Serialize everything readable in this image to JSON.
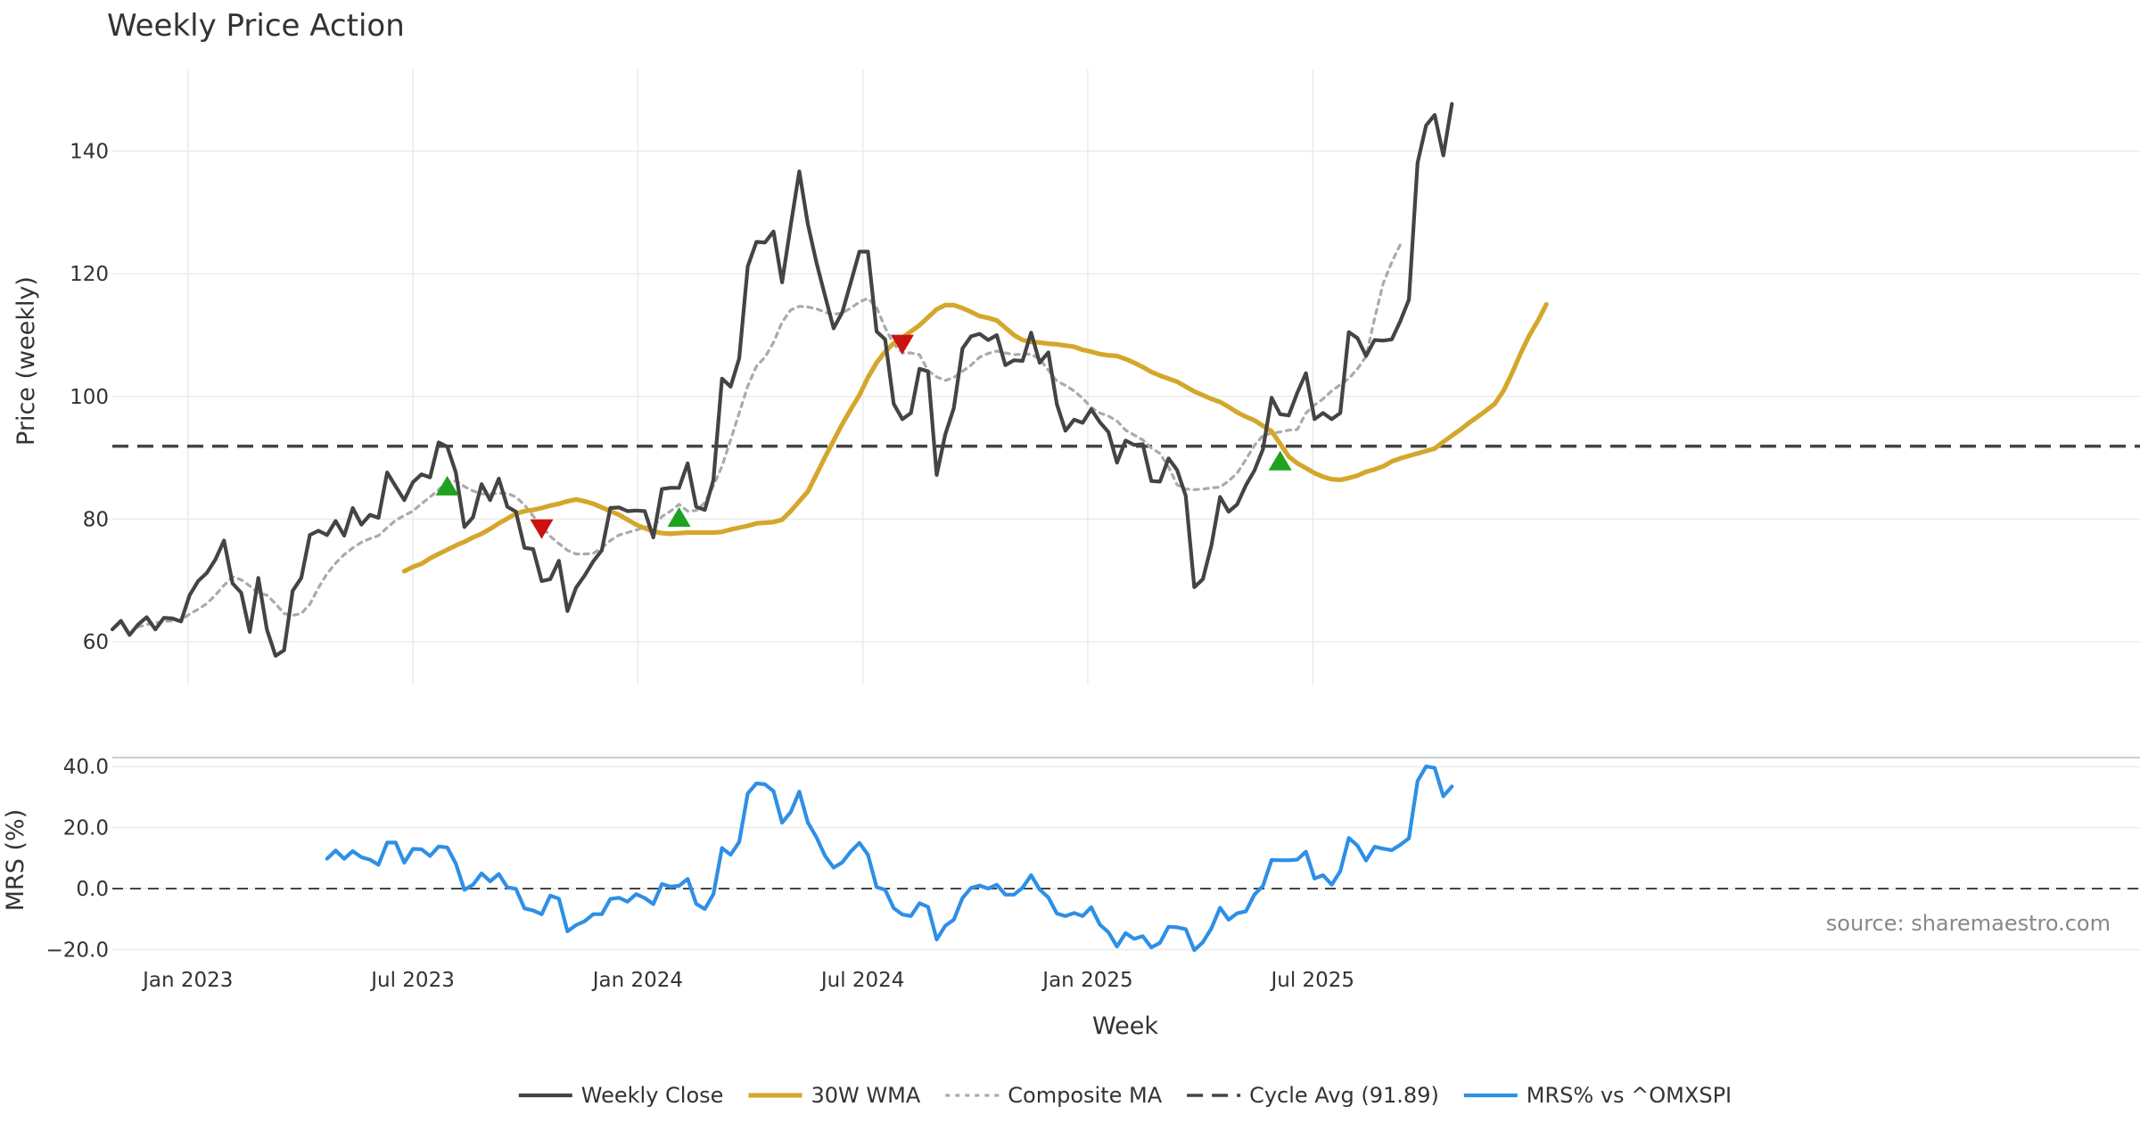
{
  "colors": {
    "close": "#444444",
    "wma": "#D4A72C",
    "composite": "#AAAAAA",
    "cycle": "#444444",
    "mrs": "#2E8FE6",
    "buy": "#1FA21F",
    "sell": "#CC1111"
  },
  "chart_data": {
    "type": "line",
    "title": "Weekly Price Action",
    "xlabel": "Week",
    "x_ticks": [
      "Jan 2023",
      "Jul 2023",
      "Jan 2024",
      "Jul 2024",
      "Jan 2025",
      "Jul 2025"
    ],
    "source": "source: sharemaestro.com",
    "price_panel": {
      "ylabel": "Price (weekly)",
      "yticks": [
        "60",
        "80",
        "100",
        "120",
        "140"
      ],
      "ylim": [
        55,
        156
      ],
      "x_start_week": 0,
      "cycle_avg": 91.89,
      "series": [
        {
          "name": "Weekly Close",
          "x_start": 0,
          "values": [
            62,
            63.4,
            61.1,
            62.8,
            64,
            62,
            63.9,
            63.8,
            63.3,
            67.6,
            69.9,
            71.2,
            73.4,
            76.5,
            69.5,
            68,
            61.6,
            70.4,
            62,
            57.7,
            58.6,
            68.3,
            70.4,
            77.4,
            78.1,
            77.4,
            79.7,
            77.3,
            81.8,
            79.1,
            80.7,
            80.2,
            87.6,
            85.3,
            83.1,
            86,
            87.3,
            86.8,
            92.5,
            91.8,
            87.6,
            78.7,
            80.3,
            85.7,
            83.1,
            86.6,
            82,
            81.2,
            75.3,
            75.1,
            69.9,
            70.2,
            73.2,
            65,
            68.8,
            70.8,
            73.1,
            74.9,
            81.8,
            81.9,
            81.3,
            81.4,
            81.3,
            77,
            84.9,
            85.1,
            85.1,
            89.1,
            82,
            81.5,
            86.4,
            102.9,
            101.6,
            106.2,
            121.2,
            125.2,
            125.1,
            126.9,
            118.6,
            127.9,
            136.7,
            128.1,
            121.8,
            116.4,
            111.1,
            113.7,
            118.6,
            123.6,
            123.6,
            110.6,
            109.3,
            98.8,
            96.3,
            97.3,
            104.5,
            104.1,
            87.2,
            93.8,
            98.1,
            107.8,
            109.8,
            110.2,
            109.2,
            110,
            105.1,
            105.9,
            105.8,
            110.4,
            105.5,
            107.2,
            98.7,
            94.4,
            96.2,
            95.7,
            97.9,
            95.8,
            94.2,
            89.2,
            92.8,
            92.1,
            92.2,
            86.2,
            86.1,
            89.9,
            88,
            83.8,
            68.9,
            70.2,
            75.7,
            83.6,
            81.2,
            82.4,
            85.5,
            87.9,
            91.4,
            99.8,
            97.1,
            96.9,
            100.6,
            103.8,
            96.3,
            97.3,
            96.3,
            97.3,
            110.5,
            109.5,
            106.6,
            109.2,
            109.1,
            109.3,
            112.3,
            115.8,
            138.1,
            144.2,
            145.9,
            139.3,
            147.7
          ]
        },
        {
          "name": "30W WMA",
          "x_start": 34,
          "values": [
            71.5,
            72.2,
            72.7,
            73.6,
            74.3,
            75,
            75.7,
            76.3,
            77,
            77.6,
            78.4,
            79.3,
            80.1,
            80.9,
            81.3,
            81.5,
            81.8,
            82.2,
            82.5,
            82.9,
            83.2,
            82.9,
            82.5,
            81.9,
            81.3,
            80.7,
            79.9,
            79.1,
            78.5,
            78,
            77.7,
            77.6,
            77.7,
            77.8,
            77.8,
            77.8,
            77.8,
            77.9,
            78.3,
            78.6,
            78.9,
            79.3,
            79.4,
            79.5,
            79.9,
            81.3,
            82.9,
            84.5,
            87.3,
            90.1,
            92.8,
            95.5,
            97.9,
            100.2,
            103.1,
            105.5,
            107.3,
            108.7,
            109.6,
            110.6,
            111.6,
            112.9,
            114.2,
            114.9,
            114.9,
            114.4,
            113.8,
            113.1,
            112.8,
            112.4,
            111.2,
            110,
            109.2,
            108.9,
            108.8,
            108.6,
            108.5,
            108.3,
            108.1,
            107.6,
            107.3,
            106.9,
            106.7,
            106.6,
            106.1,
            105.5,
            104.8,
            104,
            103.4,
            102.9,
            102.4,
            101.6,
            100.8,
            100.2,
            99.6,
            99.1,
            98.3,
            97.4,
            96.7,
            96.1,
            95.2,
            94.3,
            92.3,
            90.2,
            89.1,
            88.3,
            87.5,
            86.9,
            86.5,
            86.4,
            86.7,
            87.1,
            87.7,
            88.1,
            88.6,
            89.4,
            89.9,
            90.3,
            90.7,
            91.1,
            91.5,
            92.6,
            93.6,
            94.6,
            95.7,
            96.7,
            97.7,
            98.8,
            100.9,
            103.8,
            107,
            109.9,
            112.3,
            115
          ]
        },
        {
          "name": "Composite MA",
          "x_start": 3,
          "values": [
            62.4,
            62.8,
            63.1,
            63.3,
            63.4,
            63.5,
            64.5,
            65.3,
            66.2,
            67.6,
            69.2,
            70.6,
            70.1,
            69.1,
            67.9,
            67.6,
            66.2,
            64.6,
            64.3,
            64.6,
            66.1,
            68.8,
            71.1,
            72.8,
            74.2,
            75.3,
            76.2,
            76.8,
            77.3,
            78.6,
            79.8,
            80.6,
            81.3,
            82.5,
            83.6,
            84.8,
            86,
            86.2,
            85.3,
            84.6,
            84.1,
            84.1,
            84.2,
            84.2,
            83.6,
            82.3,
            80.5,
            78.9,
            77.2,
            76,
            74.9,
            74.3,
            74.3,
            74.4,
            75.3,
            76.5,
            77.4,
            77.8,
            78.2,
            78.7,
            78.7,
            80.4,
            81.3,
            82.4,
            81.3,
            81.4,
            82.7,
            85.4,
            88.6,
            92.9,
            97.3,
            101.7,
            104.9,
            106.4,
            108.8,
            112.1,
            114.1,
            114.7,
            114.6,
            114.3,
            113.7,
            113.4,
            113.6,
            114.4,
            115.4,
            116,
            114.5,
            111.2,
            108.5,
            107.1,
            107.1,
            106.8,
            104.2,
            103.2,
            102.6,
            103.1,
            104.1,
            105.1,
            106.4,
            107,
            107.4,
            107.1,
            106.8,
            106.9,
            106.9,
            106.1,
            104.3,
            102.5,
            101.8,
            100.9,
            99.7,
            98.2,
            97.3,
            96.8,
            96,
            94.5,
            93.7,
            92.9,
            91.6,
            90.7,
            88.5,
            85.6,
            84.9,
            84.8,
            84.9,
            85.1,
            85.2,
            86.2,
            87.5,
            89.7,
            92,
            93.6,
            94,
            94.2,
            94.5,
            94.6,
            97.3,
            98.6,
            99.6,
            100.9,
            101.9,
            102.9,
            104.5,
            106.5,
            112.7,
            118.4,
            121.9,
            124.8
          ]
        }
      ],
      "signals": [
        {
          "type": "buy",
          "week": 39,
          "value": 85.3
        },
        {
          "type": "sell",
          "week": 50,
          "value": 78.5
        },
        {
          "type": "buy",
          "week": 66,
          "value": 80.2
        },
        {
          "type": "sell",
          "week": 92,
          "value": 108.6
        },
        {
          "type": "buy",
          "week": 136,
          "value": 89.4
        }
      ]
    },
    "mrs_panel": {
      "ylabel": "MRS (%)",
      "yticks": [
        "40.0",
        "20.0",
        "0.0",
        "−20.0"
      ],
      "ylim": [
        -23,
        44
      ],
      "zero_line": 0,
      "series": [
        {
          "name": "MRS% vs ^OMXSPI",
          "x_start": 25,
          "values": [
            9.8,
            12.5,
            9.8,
            12.3,
            10.3,
            9.5,
            7.8,
            15.1,
            15.1,
            8.5,
            13,
            12.9,
            10.7,
            13.8,
            13.5,
            8.2,
            -0.4,
            1.3,
            5,
            2.4,
            4.8,
            0.4,
            -0.1,
            -6.5,
            -7.2,
            -8.4,
            -2.3,
            -3.3,
            -14,
            -12,
            -10.7,
            -8.4,
            -8.4,
            -3.4,
            -3,
            -4.3,
            -1.8,
            -3.1,
            -5.1,
            1.5,
            0.6,
            0.9,
            3.2,
            -5,
            -6.7,
            -1.8,
            13.3,
            11.1,
            15.3,
            31.2,
            34.5,
            34.2,
            32,
            21.6,
            25.1,
            31.8,
            21.7,
            16.8,
            10.7,
            6.9,
            8.6,
            12.2,
            15,
            11.1,
            0.5,
            -0.4,
            -6.4,
            -8.5,
            -9,
            -4.8,
            -6,
            -16.7,
            -12.2,
            -10.2,
            -3.1,
            0.2,
            1,
            0,
            1.3,
            -2,
            -2,
            0.3,
            4.4,
            -0.3,
            -2.9,
            -8.2,
            -9,
            -8,
            -9,
            -6.1,
            -11.8,
            -14.3,
            -19,
            -14.6,
            -16.5,
            -15.6,
            -19.3,
            -17.8,
            -12.5,
            -12.7,
            -13.3,
            -20.2,
            -17.6,
            -13,
            -6.3,
            -10.2,
            -8.1,
            -7.5,
            -2,
            0.9,
            9.4,
            9.3,
            9.3,
            9.5,
            12.1,
            3.3,
            4.4,
            1.3,
            5.7,
            16.6,
            14.1,
            9.2,
            13.7,
            13.1,
            12.6,
            14.4,
            16.5,
            35.3,
            40.1,
            39.6,
            30.3,
            33.5
          ]
        }
      ]
    },
    "legend": [
      "Weekly Close",
      "30W WMA",
      "Composite MA",
      "Cycle Avg (91.89)",
      "MRS% vs ^OMXSPI"
    ],
    "legend_position": "bottom-center",
    "grid": true
  }
}
